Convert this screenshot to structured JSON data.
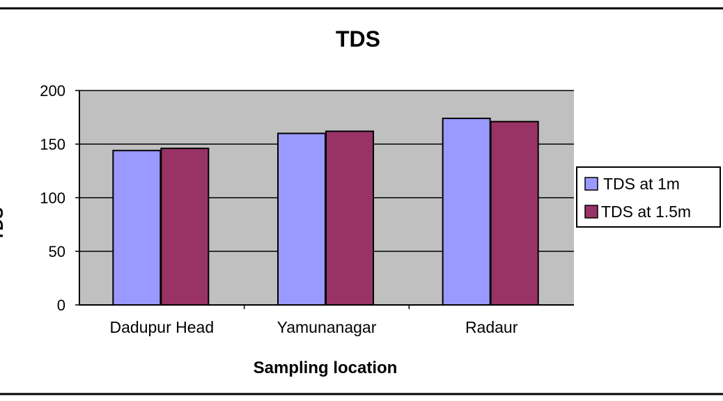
{
  "chart_data": {
    "type": "bar",
    "title": "TDS",
    "xlabel": "Sampling location",
    "ylabel": "TDS",
    "categories": [
      "Dadupur Head",
      "Yamunanagar",
      "Radaur"
    ],
    "series": [
      {
        "name": "TDS at 1m",
        "values": [
          144,
          160,
          174
        ],
        "color": "#9999ff"
      },
      {
        "name": "TDS at 1.5m",
        "values": [
          146,
          162,
          171
        ],
        "color": "#993366"
      }
    ],
    "ylim": [
      0,
      200
    ],
    "yticks": [
      "0",
      "50",
      "100",
      "150",
      "200"
    ],
    "grid": true,
    "plot_background": "#c0c0c0",
    "legend_position": "right"
  }
}
